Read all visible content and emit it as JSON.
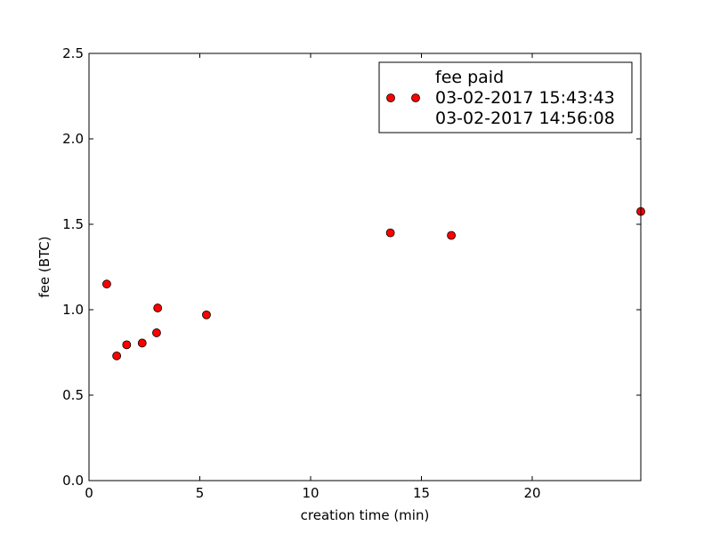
{
  "chart_data": {
    "type": "scatter",
    "xlabel": "creation time (min)",
    "ylabel": "fee (BTC)",
    "xlim": [
      0,
      24.9
    ],
    "ylim": [
      0,
      2.5
    ],
    "xticks": [
      {
        "value": 0,
        "label": "0"
      },
      {
        "value": 5,
        "label": "5"
      },
      {
        "value": 10,
        "label": "10"
      },
      {
        "value": 15,
        "label": "15"
      },
      {
        "value": 20,
        "label": "20"
      }
    ],
    "yticks": [
      {
        "value": 0.0,
        "label": "0.0"
      },
      {
        "value": 0.5,
        "label": "0.5"
      },
      {
        "value": 1.0,
        "label": "1.0"
      },
      {
        "value": 1.5,
        "label": "1.5"
      },
      {
        "value": 2.0,
        "label": "2.0"
      },
      {
        "value": 2.5,
        "label": "2.5"
      }
    ],
    "grid": false,
    "legend_position": "top-right",
    "legend_lines": [
      "fee paid",
      "03-02-2017 15:43:43",
      "03-02-2017 14:56:08"
    ],
    "marker_color": "#ff0000",
    "series": [
      {
        "points": [
          {
            "x": 0.8,
            "y": 1.15
          },
          {
            "x": 1.25,
            "y": 0.73
          },
          {
            "x": 1.7,
            "y": 0.795
          },
          {
            "x": 2.4,
            "y": 0.805
          },
          {
            "x": 3.05,
            "y": 0.865
          },
          {
            "x": 3.1,
            "y": 1.01
          },
          {
            "x": 5.3,
            "y": 0.97
          },
          {
            "x": 13.6,
            "y": 1.45
          },
          {
            "x": 16.35,
            "y": 1.435
          },
          {
            "x": 24.9,
            "y": 1.575
          }
        ]
      }
    ]
  }
}
